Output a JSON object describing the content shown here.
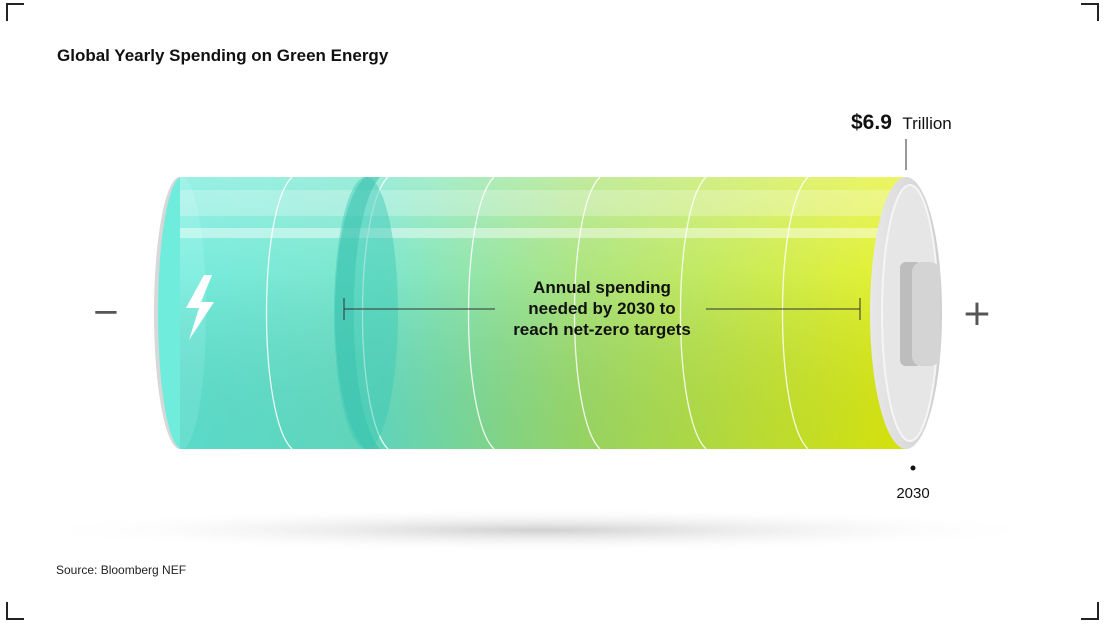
{
  "chart_data": {
    "type": "bar",
    "title": "Global Yearly Spending on Green Energy",
    "categories": [
      "2030"
    ],
    "values": [
      6.9
    ],
    "value_label": "$6.9",
    "unit_label": "Trillion",
    "annotation": [
      "Annual spending",
      "needed by 2030 to",
      "reach net-zero targets"
    ],
    "negative_symbol": "−",
    "positive_symbol": "+",
    "source": "Source: Bloomberg NEF",
    "colors": {
      "gradient_start": "#5fe8d6",
      "gradient_mid": "#9fe06a",
      "gradient_end": "#e4f00a",
      "cap": "#d9d9d9",
      "text": "#111111"
    }
  }
}
